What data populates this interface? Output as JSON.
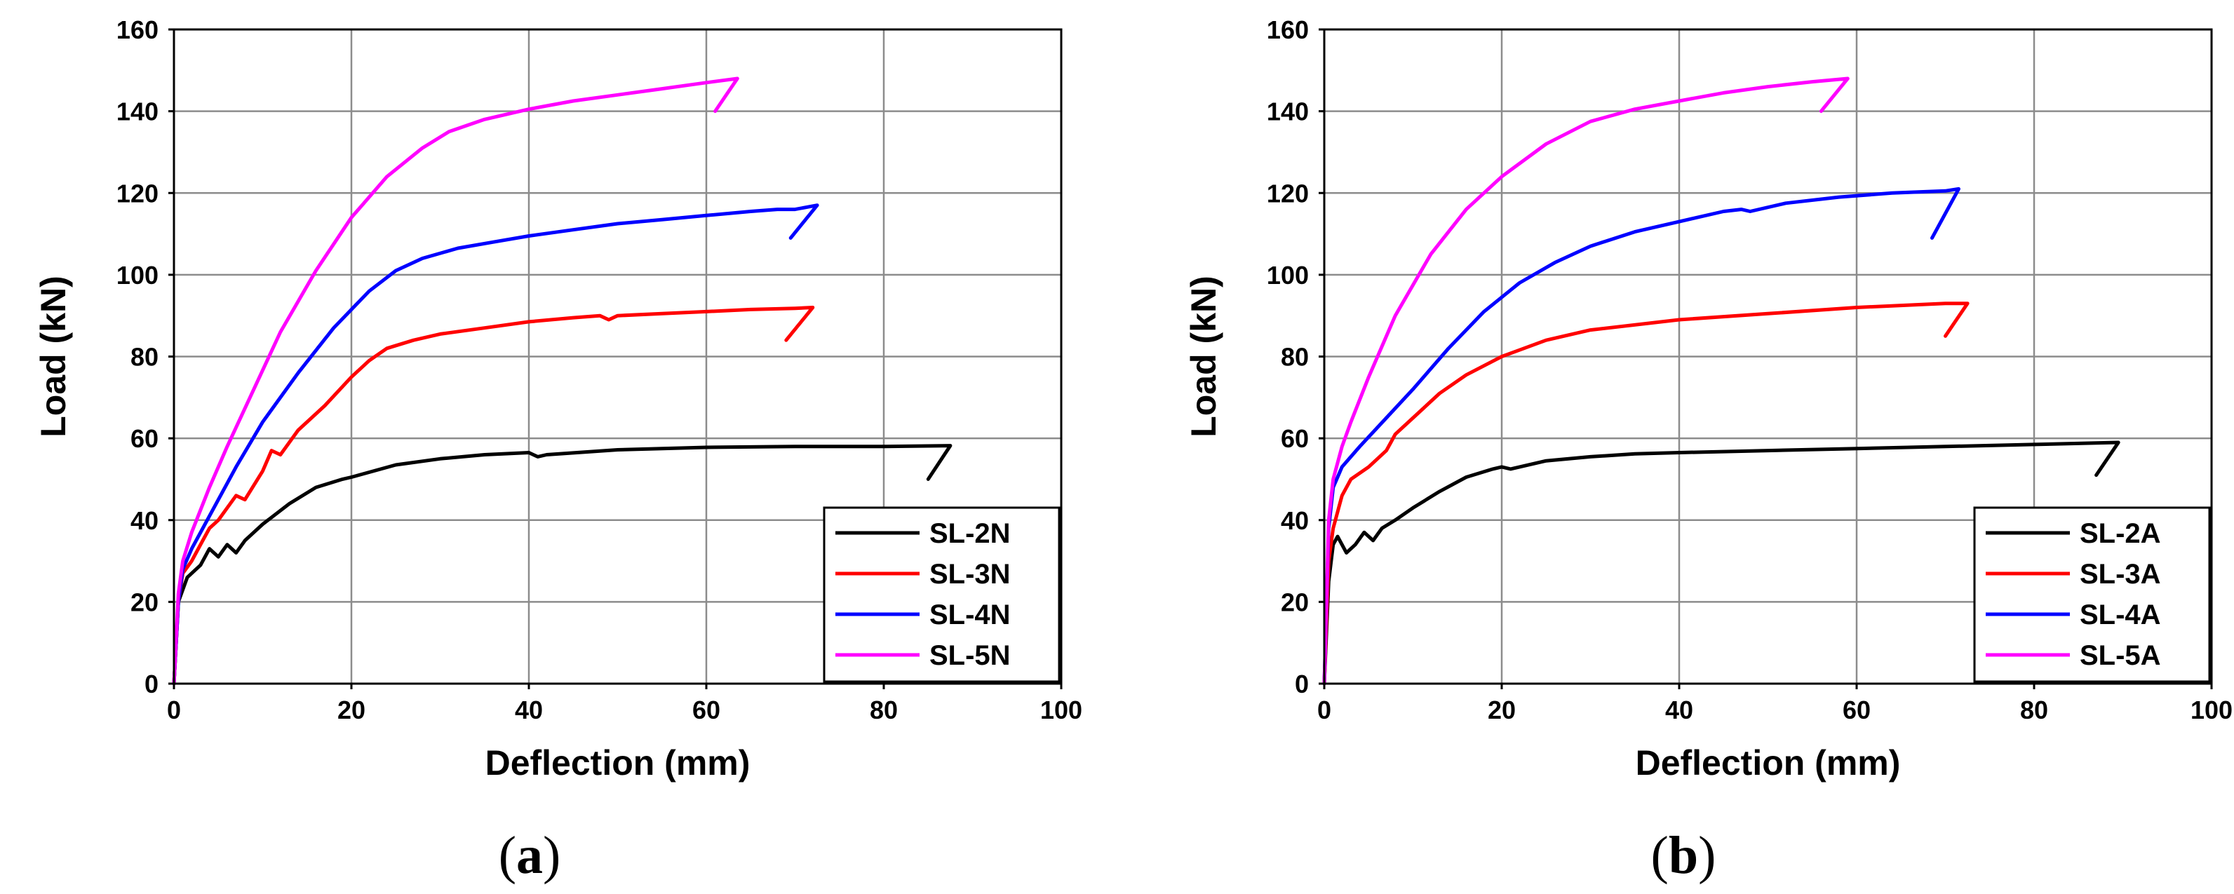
{
  "chart_data": [
    {
      "type": "line",
      "panel": "a",
      "xlabel": "Deflection (mm)",
      "ylabel": "Load (kN)",
      "xlim": [
        0,
        100
      ],
      "ylim": [
        0,
        160
      ],
      "xticks": [
        0,
        20,
        40,
        60,
        80,
        100
      ],
      "yticks": [
        0,
        20,
        40,
        60,
        80,
        100,
        120,
        140,
        160
      ],
      "grid": true,
      "legend_position": "bottom-right",
      "series": [
        {
          "name": "SL-2N",
          "color": "#000000",
          "x": [
            0,
            0.5,
            1.5,
            3,
            4,
            5,
            6,
            7,
            8,
            10,
            13,
            16,
            19,
            20,
            25,
            30,
            35,
            40,
            41,
            42,
            50,
            60,
            70,
            80,
            87.5,
            85
          ],
          "y": [
            0,
            20,
            26,
            29,
            33,
            31,
            34,
            32,
            35,
            39,
            44,
            48,
            50,
            50.5,
            53.5,
            55,
            56,
            56.5,
            55.5,
            56,
            57.2,
            57.8,
            58,
            58,
            58.2,
            50
          ]
        },
        {
          "name": "SL-3N",
          "color": "#ff0000",
          "x": [
            0,
            0.5,
            1,
            2,
            3,
            4,
            5,
            6,
            7,
            8,
            10,
            11,
            12,
            14,
            17,
            20,
            22,
            24,
            27,
            30,
            35,
            40,
            45,
            48,
            49,
            50,
            55,
            60,
            65,
            70,
            72,
            69
          ],
          "y": [
            0,
            20,
            27,
            30,
            34,
            38,
            40,
            43,
            46,
            45,
            52,
            57,
            56,
            62,
            68,
            75,
            79,
            82,
            84,
            85.5,
            87,
            88.5,
            89.5,
            90,
            89,
            90,
            90.5,
            91,
            91.5,
            91.8,
            92,
            84
          ]
        },
        {
          "name": "SL-4N",
          "color": "#0000ff",
          "x": [
            0,
            0.5,
            1,
            2,
            4,
            7,
            10,
            14,
            18,
            22,
            25,
            28,
            32,
            36,
            40,
            45,
            50,
            55,
            60,
            65,
            68,
            70,
            72.5,
            69.5
          ],
          "y": [
            0,
            20,
            28,
            33,
            41,
            53,
            64,
            76,
            87,
            96,
            101,
            104,
            106.5,
            108,
            109.5,
            111,
            112.5,
            113.5,
            114.5,
            115.5,
            116,
            116,
            117,
            109
          ]
        },
        {
          "name": "SL-5N",
          "color": "#ff00ff",
          "x": [
            0,
            0.5,
            1,
            2,
            4,
            6,
            9,
            12,
            16,
            20,
            24,
            28,
            31,
            35,
            40,
            45,
            50,
            55,
            60,
            63.5,
            61
          ],
          "y": [
            0,
            22,
            30,
            37,
            48,
            58,
            72,
            86,
            101,
            114,
            124,
            131,
            135,
            138,
            140.5,
            142.5,
            144,
            145.5,
            147,
            148,
            140
          ]
        }
      ]
    },
    {
      "type": "line",
      "panel": "b",
      "xlabel": "Deflection (mm)",
      "ylabel": "Load (kN)",
      "xlim": [
        0,
        100
      ],
      "ylim": [
        0,
        160
      ],
      "xticks": [
        0,
        20,
        40,
        60,
        80,
        100
      ],
      "yticks": [
        0,
        20,
        40,
        60,
        80,
        100,
        120,
        140,
        160
      ],
      "grid": true,
      "legend_position": "bottom-right",
      "series": [
        {
          "name": "SL-2A",
          "color": "#000000",
          "x": [
            0,
            0.5,
            1,
            1.5,
            2.5,
            3.5,
            4.5,
            5.5,
            6.5,
            8,
            10,
            13,
            16,
            19,
            20,
            21,
            25,
            30,
            35,
            40,
            50,
            60,
            70,
            80,
            89.5,
            87
          ],
          "y": [
            0,
            25,
            34,
            36,
            32,
            34,
            37,
            35,
            38,
            40,
            43,
            47,
            50.5,
            52.5,
            53,
            52.5,
            54.5,
            55.5,
            56.2,
            56.5,
            57,
            57.5,
            58,
            58.5,
            59,
            51
          ]
        },
        {
          "name": "SL-3A",
          "color": "#ff0000",
          "x": [
            0,
            0.5,
            1,
            1.5,
            2,
            3,
            5,
            7,
            7.5,
            8,
            10,
            13,
            16,
            20,
            25,
            30,
            40,
            50,
            60,
            70,
            72.5,
            70
          ],
          "y": [
            0,
            30,
            38,
            42,
            46,
            50,
            53,
            57,
            59,
            61,
            65,
            71,
            75.5,
            80,
            84,
            86.5,
            89,
            90.5,
            92,
            93,
            93,
            85
          ]
        },
        {
          "name": "SL-4A",
          "color": "#0000ff",
          "x": [
            0,
            0.5,
            1,
            2,
            4,
            7,
            10,
            14,
            18,
            22,
            26,
            30,
            35,
            40,
            45,
            47,
            48,
            52,
            58,
            64,
            70,
            71.5,
            68.5
          ],
          "y": [
            0,
            38,
            48,
            53,
            58,
            65,
            72,
            82,
            91,
            98,
            103,
            107,
            110.5,
            113,
            115.5,
            116,
            115.5,
            117.5,
            119,
            120,
            120.5,
            121,
            109
          ]
        },
        {
          "name": "SL-5A",
          "color": "#ff00ff",
          "x": [
            0,
            0.5,
            1,
            2,
            3,
            5,
            8,
            12,
            16,
            20,
            25,
            30,
            35,
            40,
            45,
            50,
            55,
            59,
            56
          ],
          "y": [
            0,
            40,
            50,
            58,
            64,
            75,
            90,
            105,
            116,
            124,
            132,
            137.5,
            140.5,
            142.5,
            144.5,
            146,
            147.2,
            148,
            140
          ]
        }
      ]
    }
  ]
}
